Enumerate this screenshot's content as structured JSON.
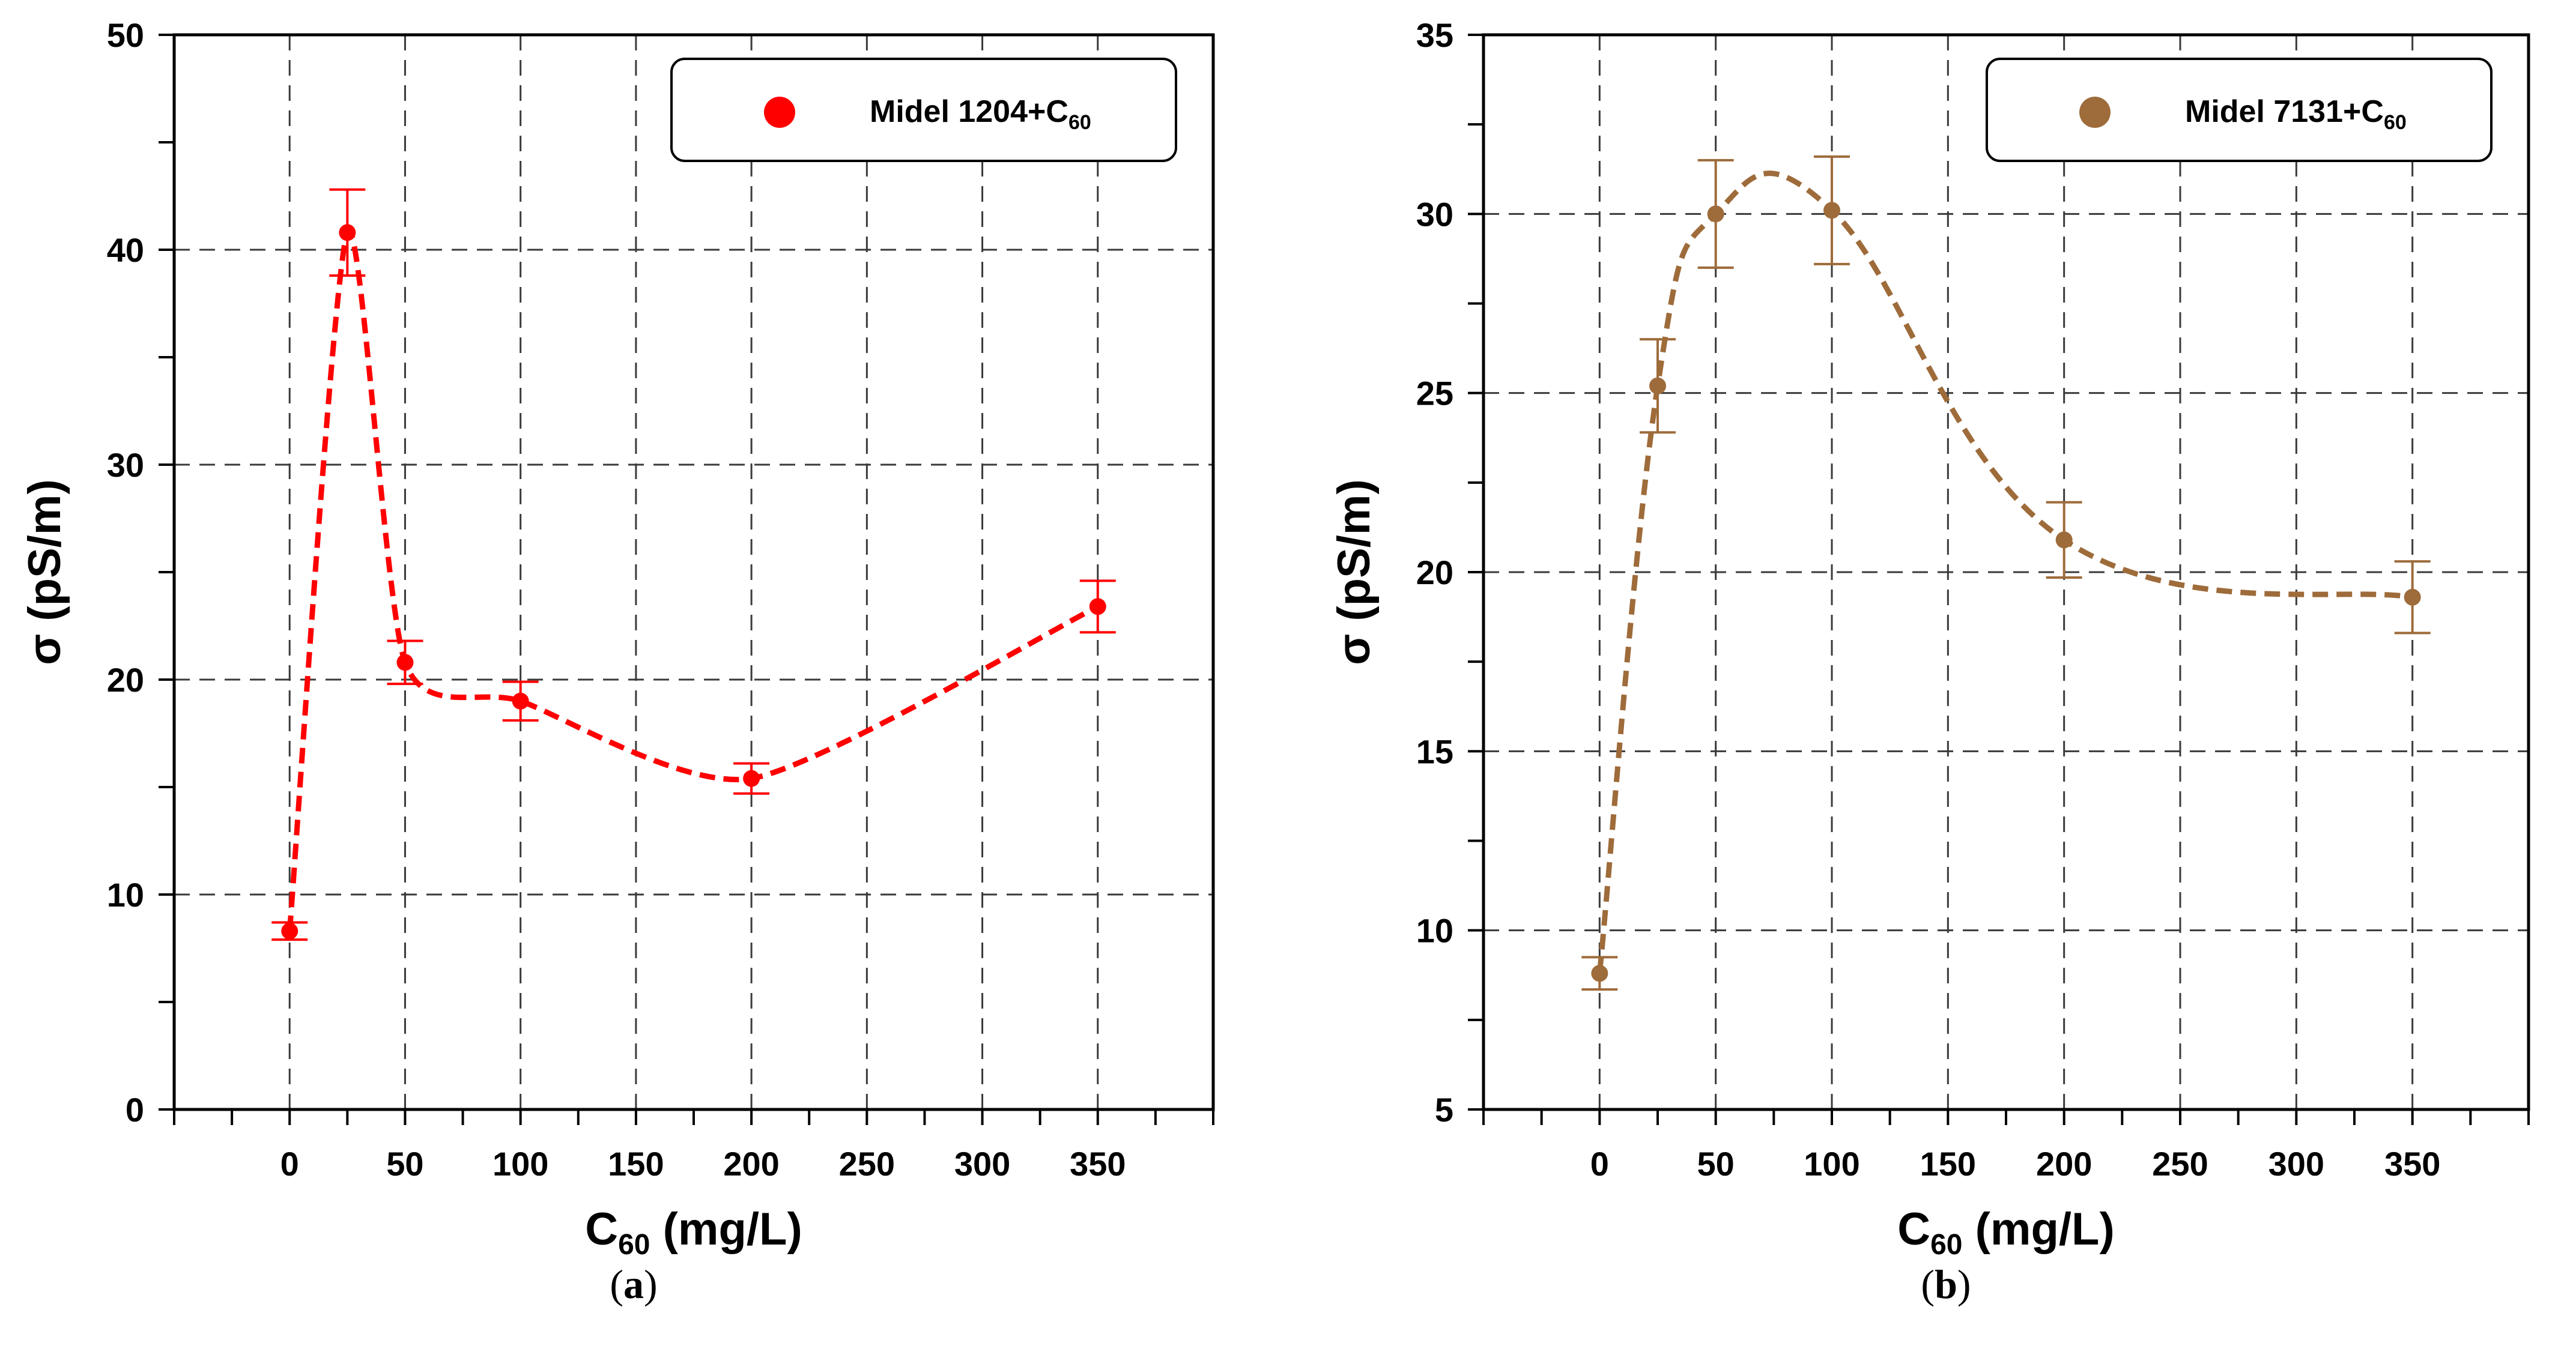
{
  "figure": {
    "sublabels": [
      "(a)",
      "(b)"
    ]
  },
  "chart_data": [
    {
      "type": "line",
      "panel": "a",
      "title": "",
      "xlabel_main": "C",
      "xlabel_sub": "60",
      "xlabel_unit": " (mg/L)",
      "ylabel": "σ (pS/m)",
      "xlim": [
        -50,
        400
      ],
      "ylim": [
        0,
        50
      ],
      "xticks": [
        0,
        50,
        100,
        150,
        200,
        250,
        300,
        350
      ],
      "yticks": [
        0,
        10,
        20,
        30,
        40,
        50
      ],
      "grid": true,
      "legend_position": "top-right",
      "series": [
        {
          "name_main": "Midel 1204+C",
          "name_sub": "60",
          "color": "#ff0000",
          "x": [
            0,
            25,
            50,
            100,
            200,
            350
          ],
          "y": [
            8.3,
            40.8,
            20.8,
            19.0,
            15.4,
            23.4
          ],
          "err": [
            0.4,
            2.0,
            1.0,
            0.9,
            0.7,
            1.2
          ]
        }
      ]
    },
    {
      "type": "line",
      "panel": "b",
      "title": "",
      "xlabel_main": "C",
      "xlabel_sub": "60",
      "xlabel_unit": " (mg/L)",
      "ylabel": "σ (pS/m)",
      "xlim": [
        -50,
        400
      ],
      "ylim": [
        5,
        35
      ],
      "xticks": [
        0,
        50,
        100,
        150,
        200,
        250,
        300,
        350
      ],
      "yticks": [
        5,
        10,
        15,
        20,
        25,
        30,
        35
      ],
      "grid": true,
      "legend_position": "top-right",
      "series": [
        {
          "name_main": "Midel 7131+C",
          "name_sub": "60",
          "color": "#9e6b3a",
          "x": [
            0,
            25,
            50,
            100,
            200,
            350
          ],
          "y": [
            8.8,
            25.2,
            30.0,
            30.1,
            20.9,
            19.3
          ],
          "err": [
            0.45,
            1.3,
            1.5,
            1.5,
            1.05,
            1.0
          ]
        }
      ]
    }
  ]
}
